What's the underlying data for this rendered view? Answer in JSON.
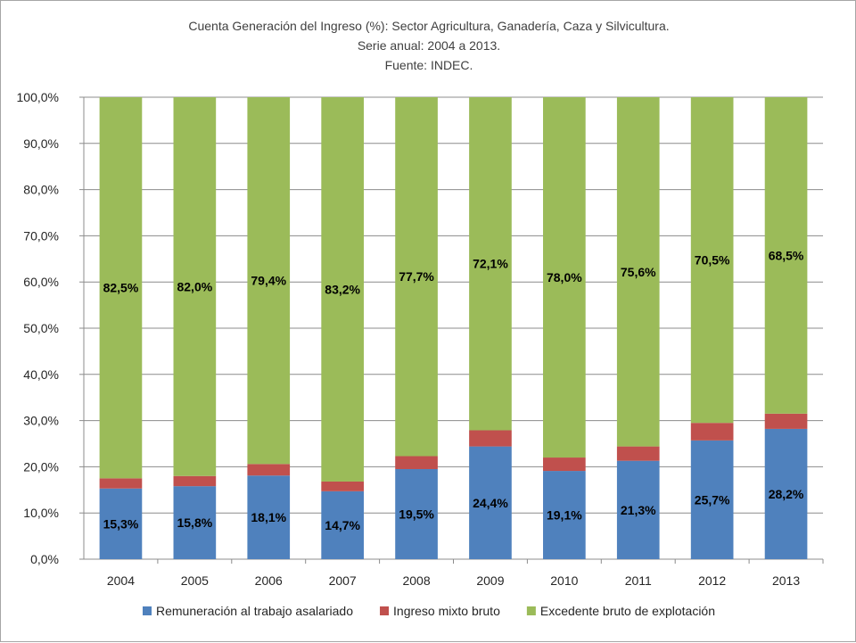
{
  "chart_data": {
    "type": "bar",
    "stacked": true,
    "percent_stacked": true,
    "title": "Cuenta Generación del Ingreso (%): Sector Agricultura, Ganadería, Caza y Silvicultura.",
    "subtitle": "Serie anual: 2004 a 2013.",
    "source": "Fuente: INDEC.",
    "xlabel": "",
    "ylabel": "",
    "ylim": [
      0,
      100
    ],
    "y_ticks": [
      "0,0%",
      "10,0%",
      "20,0%",
      "30,0%",
      "40,0%",
      "50,0%",
      "60,0%",
      "70,0%",
      "80,0%",
      "90,0%",
      "100,0%"
    ],
    "grid": true,
    "legend_position": "bottom",
    "categories": [
      "2004",
      "2005",
      "2006",
      "2007",
      "2008",
      "2009",
      "2010",
      "2011",
      "2012",
      "2013"
    ],
    "series": [
      {
        "name": "Remuneración al trabajo asalariado",
        "color": "#4f81bd",
        "values": [
          15.3,
          15.8,
          18.1,
          14.7,
          19.5,
          24.4,
          19.1,
          21.3,
          25.7,
          28.2
        ],
        "labels": [
          "15,3%",
          "15,8%",
          "18,1%",
          "14,7%",
          "19,5%",
          "24,4%",
          "19,1%",
          "21,3%",
          "25,7%",
          "28,2%"
        ]
      },
      {
        "name": "Ingreso mixto bruto",
        "color": "#c0504d",
        "values": [
          2.2,
          2.2,
          2.5,
          2.1,
          2.8,
          3.5,
          2.9,
          3.1,
          3.8,
          3.3
        ],
        "labels": []
      },
      {
        "name": "Excedente bruto de explotación",
        "color": "#9bbb59",
        "values": [
          82.5,
          82.0,
          79.4,
          83.2,
          77.7,
          72.1,
          78.0,
          75.6,
          70.5,
          68.5
        ],
        "labels": [
          "82,5%",
          "82,0%",
          "79,4%",
          "83,2%",
          "77,7%",
          "72,1%",
          "78,0%",
          "75,6%",
          "70,5%",
          "68,5%"
        ]
      }
    ]
  }
}
